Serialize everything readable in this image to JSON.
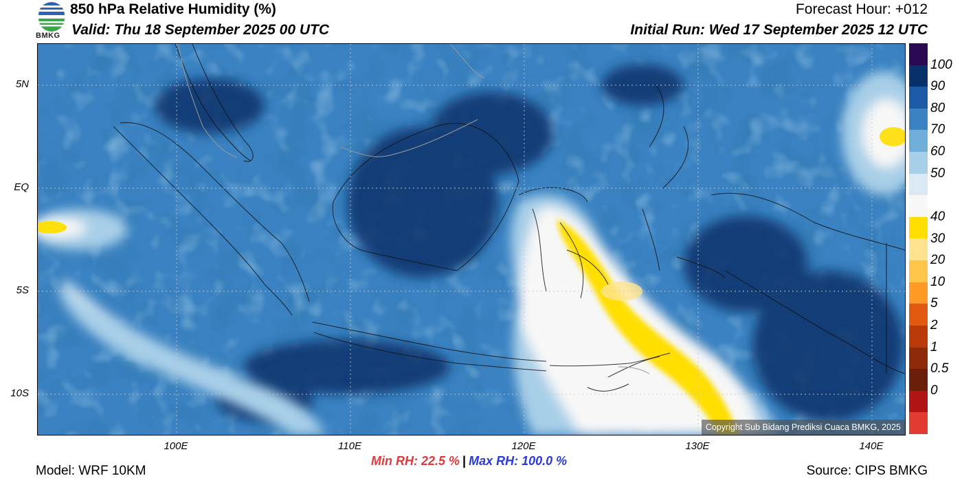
{
  "header": {
    "title": "850 hPa Relative Humidity (%)",
    "valid": "Valid: Thu 18 September 2025 00 UTC",
    "forecast_hour": "Forecast Hour: +012",
    "initial_run": "Initial Run: Wed 17 September 2025 12 UTC",
    "logo_text": "BMKG"
  },
  "map": {
    "lat_labels": [
      "5N",
      "EQ",
      "5S",
      "10S"
    ],
    "lon_labels": [
      "100E",
      "110E",
      "120E",
      "130E",
      "140E"
    ],
    "copyright": "Copyright Sub Bidang Prediksi Cuaca BMKG, 2025"
  },
  "colorbar": {
    "labels": [
      "100",
      "90",
      "80",
      "70",
      "60",
      "50",
      "40",
      "30",
      "20",
      "10",
      "5",
      "2",
      "1",
      "0.5",
      "0"
    ],
    "colors": [
      "#2a0a52",
      "#08306b",
      "#1c5aa6",
      "#3a82c2",
      "#6eaed8",
      "#a8cfe8",
      "#dae9f3",
      "#f7f7f7",
      "#ffde00",
      "#ffe38e",
      "#ffc44a",
      "#ff9a26",
      "#e05a10",
      "#b93a08",
      "#8c2a0a",
      "#6b1e0a",
      "#b01414",
      "#e23c32"
    ]
  },
  "stats": {
    "min_rh": "Min RH:  22.5 %",
    "separator": "|",
    "max_rh": "Max RH: 100.0 %"
  },
  "footer": {
    "model": "Model: WRF 10KM",
    "source": "Source: CIPS BMKG"
  }
}
